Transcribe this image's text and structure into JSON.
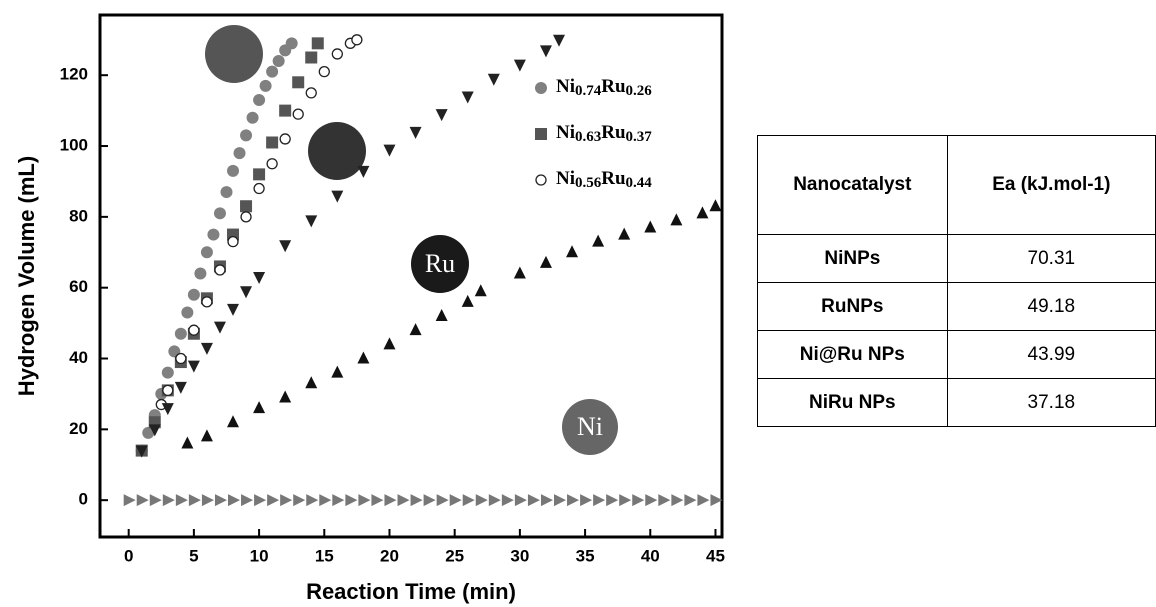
{
  "chart_data": {
    "type": "scatter",
    "xlabel": "Reaction Time (min)",
    "ylabel": "Hydrogen Volume (mL)",
    "xlim": [
      -2.2,
      45.5
    ],
    "ylim": [
      -10.4,
      137
    ],
    "xticks": [
      0,
      5,
      10,
      15,
      20,
      25,
      30,
      35,
      40,
      45
    ],
    "yticks": [
      0,
      20,
      40,
      60,
      80,
      100,
      120
    ],
    "legend": "upper right",
    "annotations": [
      "Ru",
      "Ni"
    ],
    "series": [
      {
        "name": "Ni0.74Ru0.26",
        "color": "#808080",
        "marker": "circle",
        "x": [
          1,
          1.5,
          2,
          2.5,
          3,
          3.5,
          4,
          4.5,
          5,
          5.5,
          6,
          6.5,
          7,
          7.5,
          8,
          8.5,
          9,
          9.5,
          10,
          10.5,
          11,
          11.5,
          12,
          12.5
        ],
        "values": [
          14,
          19,
          24,
          30,
          36,
          42,
          47,
          53,
          58,
          64,
          70,
          75,
          81,
          87,
          93,
          98,
          103,
          108,
          113,
          117,
          121,
          124,
          127,
          129
        ]
      },
      {
        "name": "Ni0.63Ru0.37",
        "color": "#555555",
        "marker": "square",
        "x": [
          1,
          2,
          3,
          4,
          5,
          6,
          7,
          8,
          9,
          10,
          11,
          12,
          13,
          14,
          14.5
        ],
        "values": [
          14,
          22,
          31,
          39,
          47,
          57,
          66,
          75,
          83,
          92,
          101,
          110,
          118,
          125,
          129
        ]
      },
      {
        "name": "Ni0.56Ru0.44",
        "color": "#222222",
        "marker": "open-circle",
        "x": [
          2.5,
          3,
          4,
          5,
          6,
          7,
          8,
          9,
          10,
          11,
          12,
          13,
          14,
          15,
          16,
          17,
          17.5
        ],
        "values": [
          27,
          31,
          40,
          48,
          56,
          65,
          73,
          80,
          88,
          95,
          102,
          109,
          115,
          121,
          126,
          129,
          130
        ]
      },
      {
        "color": "#222222",
        "marker": "triangle-down",
        "x": [
          1,
          2,
          3,
          4,
          5,
          6,
          7,
          8,
          9,
          10,
          12,
          14,
          16,
          18,
          20,
          22,
          24,
          26,
          28,
          30,
          32,
          33
        ],
        "values": [
          14,
          20,
          26,
          32,
          38,
          43,
          49,
          54,
          59,
          63,
          72,
          79,
          86,
          93,
          99,
          104,
          109,
          114,
          119,
          123,
          127,
          130
        ]
      },
      {
        "color": "#111111",
        "marker": "triangle-up",
        "x": [
          4.5,
          6,
          8,
          10,
          12,
          14,
          16,
          18,
          20,
          22,
          24,
          26,
          27,
          30,
          32,
          34,
          36,
          38,
          40,
          42,
          44,
          45
        ],
        "values": [
          16,
          18,
          22,
          26,
          29,
          33,
          36,
          40,
          44,
          48,
          52,
          56,
          59,
          64,
          67,
          70,
          73,
          75,
          77,
          79,
          81,
          83
        ]
      },
      {
        "color": "#777777",
        "marker": "triangle-right",
        "x": [
          0,
          1,
          2,
          3,
          4,
          5,
          6,
          7,
          8,
          9,
          10,
          11,
          12,
          13,
          14,
          15,
          16,
          17,
          18,
          19,
          20,
          21,
          22,
          23,
          24,
          25,
          26,
          27,
          28,
          29,
          30,
          31,
          32,
          33,
          34,
          35,
          36,
          37,
          38,
          39,
          40,
          41,
          42,
          43,
          44,
          45
        ],
        "values": [
          0,
          0,
          0,
          0,
          0,
          0,
          0,
          0,
          0,
          0,
          0,
          0,
          0,
          0,
          0,
          0,
          0,
          0,
          0,
          0,
          0,
          0,
          0,
          0,
          0,
          0,
          0,
          0,
          0,
          0,
          0,
          0,
          0,
          0,
          0,
          0,
          0,
          0,
          0,
          0,
          0,
          0,
          0,
          0,
          0,
          0
        ]
      }
    ]
  },
  "table": {
    "header": [
      "Nanocatalyst",
      "Ea (kJ.mol-1)"
    ],
    "rows": [
      [
        "NiNPs",
        "70.31"
      ],
      [
        "RuNPs",
        "49.18"
      ],
      [
        "Ni@Ru NPs",
        "43.99"
      ],
      [
        "NiRu NPs",
        "37.18"
      ]
    ]
  }
}
